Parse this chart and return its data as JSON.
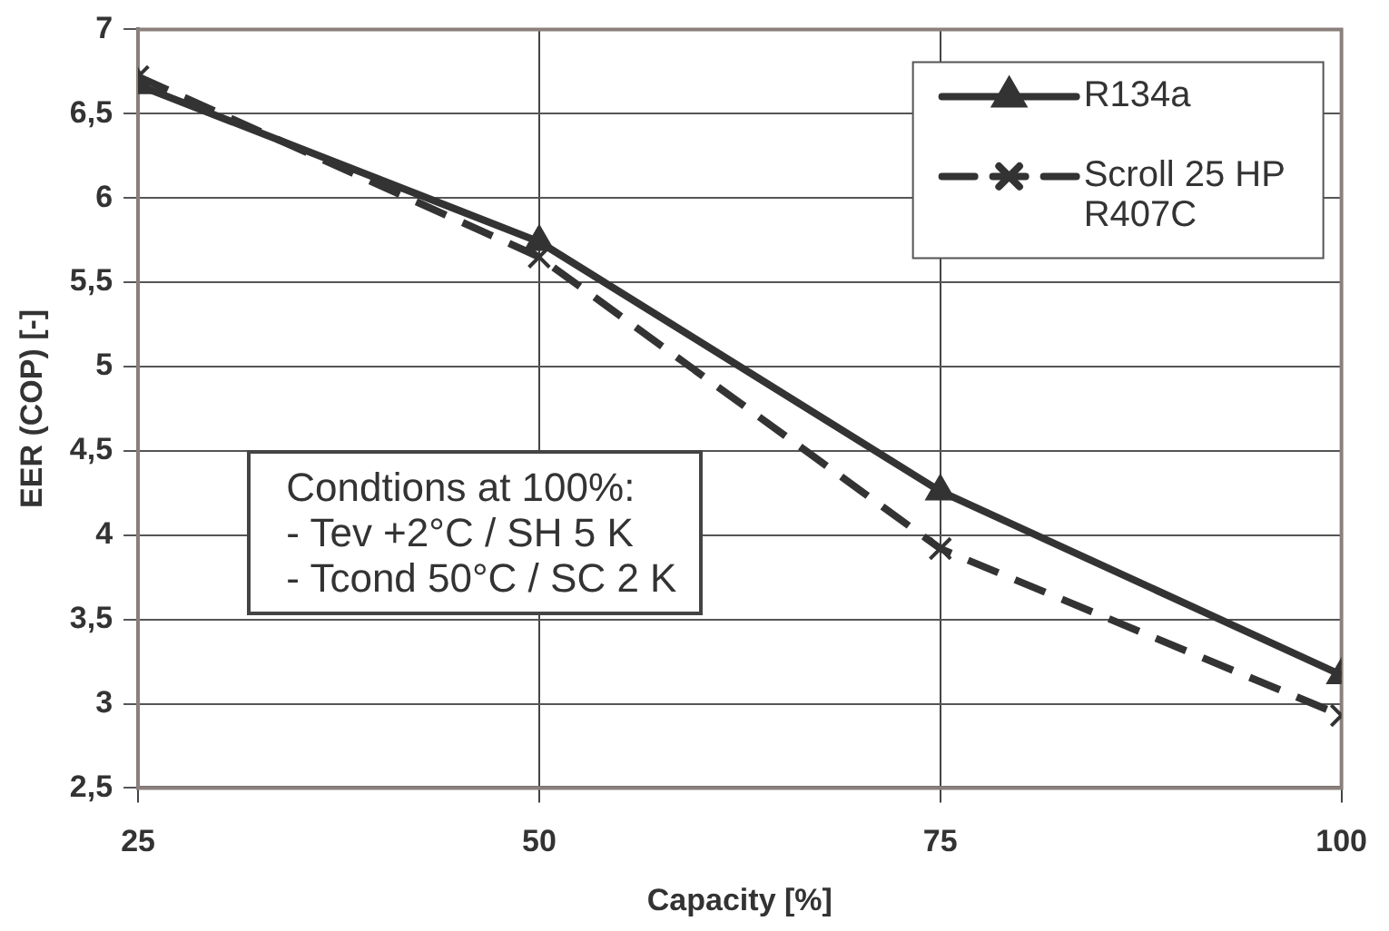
{
  "chart_data": {
    "type": "line",
    "xlabel": "Capacity [%]",
    "ylabel": "EER (COP) [-]",
    "x": [
      25,
      50,
      75,
      100
    ],
    "series": [
      {
        "name": "R134a",
        "color": "#333333",
        "values": [
          6.67,
          5.74,
          4.26,
          3.17
        ],
        "marker": "triangle",
        "line_style": "solid"
      },
      {
        "name": "Scroll 25 HP R407C",
        "color": "#333333",
        "values": [
          6.72,
          5.65,
          3.92,
          2.93
        ],
        "marker": "cross",
        "line_style": "dashed"
      }
    ],
    "xlim": [
      25,
      100
    ],
    "xticks": [
      25,
      50,
      75,
      100
    ],
    "ylim": [
      2.5,
      7
    ],
    "yticks": [
      {
        "value": 2.5,
        "label": "2,5"
      },
      3,
      {
        "value": 3.5,
        "label": "3,5"
      },
      4,
      {
        "value": 4.5,
        "label": "4,5"
      },
      5,
      {
        "value": 5.5,
        "label": "5,5"
      },
      6,
      {
        "value": 6.5,
        "label": "6,5"
      },
      7
    ],
    "grid": true,
    "legend": "top right",
    "annotations": [
      "Condtions at 100%:",
      "- Tev +2°C / SH 5 K",
      "- Tcond 50°C / SC 2 K"
    ]
  }
}
